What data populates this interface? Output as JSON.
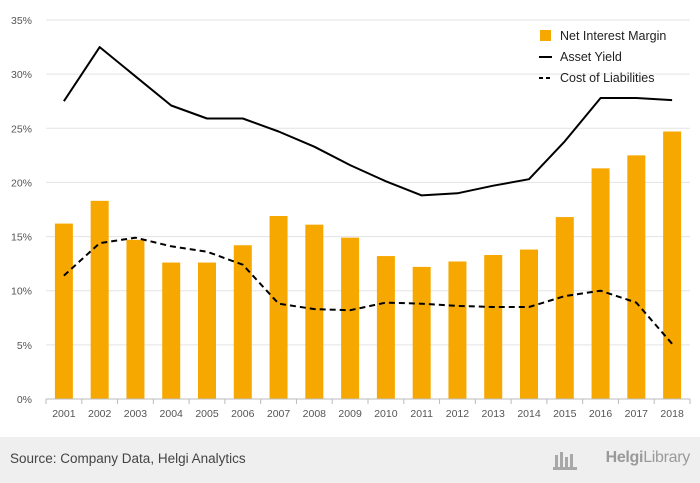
{
  "chart_data": {
    "type": "bar+line",
    "categories": [
      "2001",
      "2002",
      "2003",
      "2004",
      "2005",
      "2006",
      "2007",
      "2008",
      "2009",
      "2010",
      "2011",
      "2012",
      "2013",
      "2014",
      "2015",
      "2016",
      "2017",
      "2018"
    ],
    "series": [
      {
        "name": "Net Interest Margin",
        "type": "bar",
        "color": "#f7a800",
        "values": [
          16.2,
          18.3,
          14.7,
          12.6,
          12.6,
          14.2,
          16.9,
          16.1,
          14.9,
          13.2,
          12.2,
          12.7,
          13.3,
          13.8,
          16.8,
          21.3,
          22.5,
          24.7
        ]
      },
      {
        "name": "Asset Yield",
        "type": "line",
        "style": "solid",
        "color": "#000000",
        "values": [
          27.5,
          32.5,
          29.8,
          27.1,
          25.9,
          25.9,
          24.7,
          23.3,
          21.6,
          20.1,
          18.8,
          19.0,
          19.7,
          20.3,
          23.8,
          27.8,
          27.8,
          27.6
        ]
      },
      {
        "name": "Cost of Liabilities",
        "type": "line",
        "style": "dashed",
        "color": "#000000",
        "values": [
          11.4,
          14.4,
          14.9,
          14.1,
          13.6,
          12.4,
          8.8,
          8.3,
          8.2,
          8.9,
          8.8,
          8.6,
          8.5,
          8.5,
          9.5,
          10.0,
          8.9,
          5.1
        ]
      }
    ],
    "yticks": [
      "0%",
      "5%",
      "10%",
      "15%",
      "20%",
      "25%",
      "30%",
      "35%"
    ],
    "ylim": [
      0,
      35
    ],
    "grid": "horizontal",
    "legend_position": "top-right"
  },
  "footer": {
    "source": "Source: Company Data, Helgi Analytics",
    "brand_main": "Helgi",
    "brand_lib": "Library"
  }
}
